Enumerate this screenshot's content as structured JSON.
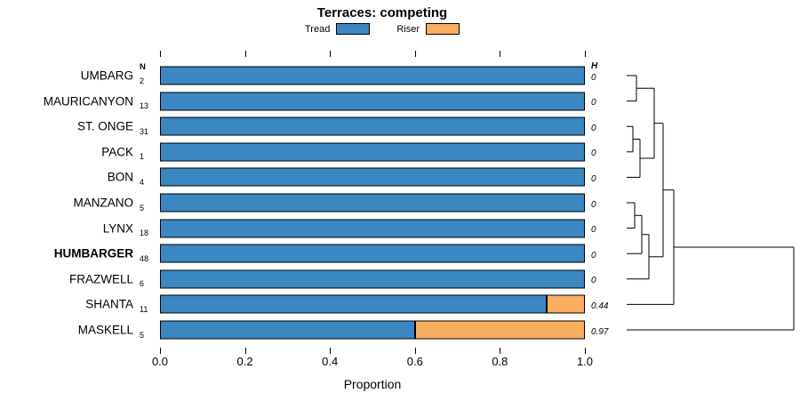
{
  "title": "Terraces: competing",
  "legend": [
    {
      "label": "Tread",
      "color": "#3A87C2"
    },
    {
      "label": "Riser",
      "color": "#FBAE60"
    }
  ],
  "columns": {
    "n_header": "N",
    "h_header": "H"
  },
  "x_axis": {
    "label": "Proportion",
    "ticks": [
      "0.0",
      "0.2",
      "0.4",
      "0.6",
      "0.8",
      "1.0"
    ],
    "range": [
      0,
      1
    ]
  },
  "chart_data": {
    "type": "bar",
    "orientation": "horizontal",
    "stacked": true,
    "series_names": [
      "Tread",
      "Riser"
    ],
    "xlabel": "Proportion",
    "xlim": [
      0,
      1
    ],
    "rows": [
      {
        "label": "UMBARG",
        "n": 2,
        "tread": 1.0,
        "riser": 0.0,
        "h": "0",
        "bold": false
      },
      {
        "label": "MAURICANYON",
        "n": 13,
        "tread": 1.0,
        "riser": 0.0,
        "h": "0",
        "bold": false
      },
      {
        "label": "ST. ONGE",
        "n": 31,
        "tread": 1.0,
        "riser": 0.0,
        "h": "0",
        "bold": false
      },
      {
        "label": "PACK",
        "n": 1,
        "tread": 1.0,
        "riser": 0.0,
        "h": "0",
        "bold": false
      },
      {
        "label": "BON",
        "n": 4,
        "tread": 1.0,
        "riser": 0.0,
        "h": "0",
        "bold": false
      },
      {
        "label": "MANZANO",
        "n": 5,
        "tread": 1.0,
        "riser": 0.0,
        "h": "0",
        "bold": false
      },
      {
        "label": "LYNX",
        "n": 18,
        "tread": 1.0,
        "riser": 0.0,
        "h": "0",
        "bold": false
      },
      {
        "label": "HUMBARGER",
        "n": 48,
        "tread": 1.0,
        "riser": 0.0,
        "h": "0",
        "bold": true
      },
      {
        "label": "FRAZWELL",
        "n": 6,
        "tread": 1.0,
        "riser": 0.0,
        "h": "0",
        "bold": false
      },
      {
        "label": "SHANTA",
        "n": 11,
        "tread": 0.909,
        "riser": 0.091,
        "h": "0.44",
        "bold": false
      },
      {
        "label": "MASKELL",
        "n": 5,
        "tread": 0.6,
        "riser": 0.4,
        "h": "0.97",
        "bold": false
      }
    ],
    "dendrogram": {
      "segments": [
        [
          5,
          25,
          16,
          25
        ],
        [
          5,
          53.6,
          16,
          53.6
        ],
        [
          16,
          25,
          16,
          53.6
        ],
        [
          5,
          82.2,
          12,
          82.2
        ],
        [
          5,
          110.8,
          12,
          110.8
        ],
        [
          12,
          82.2,
          12,
          110.8
        ],
        [
          12,
          96.5,
          20,
          96.5
        ],
        [
          5,
          139.4,
          20,
          139.4
        ],
        [
          20,
          96.5,
          20,
          139.4
        ],
        [
          16,
          39.3,
          36,
          39.3
        ],
        [
          20,
          118,
          36,
          118
        ],
        [
          36,
          39.3,
          36,
          118
        ],
        [
          5,
          168,
          14,
          168
        ],
        [
          5,
          196.6,
          14,
          196.6
        ],
        [
          14,
          168,
          14,
          196.6
        ],
        [
          14,
          182.3,
          22,
          182.3
        ],
        [
          5,
          225.2,
          22,
          225.2
        ],
        [
          22,
          182.3,
          22,
          225.2
        ],
        [
          22,
          203.8,
          30,
          203.8
        ],
        [
          5,
          253.8,
          30,
          253.8
        ],
        [
          30,
          203.8,
          30,
          253.8
        ],
        [
          36,
          78.6,
          46,
          78.6
        ],
        [
          30,
          228.8,
          46,
          228.8
        ],
        [
          46,
          78.6,
          46,
          228.8
        ],
        [
          46,
          153.7,
          58,
          153.7
        ],
        [
          5,
          282.4,
          58,
          282.4
        ],
        [
          58,
          153.7,
          58,
          282.4
        ],
        [
          58,
          218,
          193,
          218
        ],
        [
          5,
          311,
          193,
          311
        ],
        [
          193,
          218,
          193,
          311
        ]
      ]
    }
  }
}
